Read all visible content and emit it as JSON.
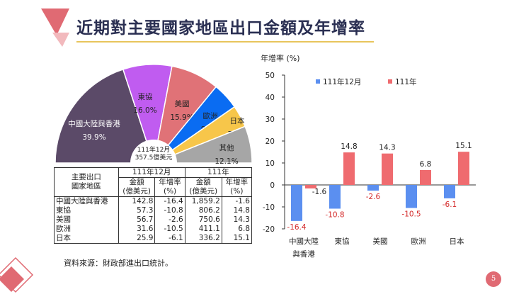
{
  "title": "近期對主要國家地區出口金額及年增率",
  "colors": {
    "accent_red": "#e06a73",
    "gold": "#e8c55c",
    "navy": "#2a2f52"
  },
  "pie": {
    "center_label": [
      "111年12月",
      "357.5億美元"
    ],
    "slices": [
      {
        "label": "中國大陸與香港",
        "pct": "39.9%",
        "value": 39.9,
        "color": "#5b4a68"
      },
      {
        "label": "東協",
        "pct": "16.0%",
        "value": 16.0,
        "color": "#c05cf0"
      },
      {
        "label": "美國",
        "pct": "15.9%",
        "value": 15.9,
        "color": "#e07277"
      },
      {
        "label": "歐洲",
        "pct": "8.8%",
        "value": 8.8,
        "color": "#0a6cf2"
      },
      {
        "label": "日本",
        "pct": "7.2%",
        "value": 7.2,
        "color": "#f7c64a"
      },
      {
        "label": "其他",
        "pct": "12.1%",
        "value": 12.1,
        "color": "#a6a6a6"
      }
    ]
  },
  "table": {
    "corner": [
      "主要出口",
      "國家地區"
    ],
    "groups": [
      "111年12月",
      "111年"
    ],
    "subheaders": [
      "金額",
      "年增率",
      "金額",
      "年增率"
    ],
    "units": [
      "(億美元)",
      "(%)",
      "(億美元)",
      "(%)"
    ],
    "rows": [
      [
        "中國大陸與香港",
        "142.8",
        "-16.4",
        "1,859.2",
        "-1.6"
      ],
      [
        "東協",
        "57.3",
        "-10.8",
        "806.2",
        "14.8"
      ],
      [
        "美國",
        "56.7",
        "-2.6",
        "750.6",
        "14.3"
      ],
      [
        "歐洲",
        "31.6",
        "-10.5",
        "411.1",
        "6.8"
      ],
      [
        "日本",
        "25.9",
        "-6.1",
        "336.2",
        "15.1"
      ]
    ]
  },
  "source": "資料來源：財政部進出口統計。",
  "page_number": "5",
  "chart_data": {
    "type": "bar",
    "ylabel": "年增率 (%)",
    "categories": [
      "中國大陸與香港",
      "東協",
      "美國",
      "歐洲",
      "日本"
    ],
    "category_lines": [
      [
        "中國大陸",
        "與香港"
      ],
      [
        "東協"
      ],
      [
        "美國"
      ],
      [
        "歐洲"
      ],
      [
        "日本"
      ]
    ],
    "series": [
      {
        "name": "111年12月",
        "values": [
          -16.4,
          -10.8,
          -2.6,
          -10.5,
          -6.1
        ],
        "color": "#5b8ff0",
        "label_color": "#d42a2a"
      },
      {
        "name": "111年",
        "values": [
          -1.6,
          14.8,
          14.3,
          6.8,
          15.1
        ],
        "color": "#ef6b6f",
        "label_color": "#222222"
      }
    ],
    "ylim": [
      -20,
      50
    ],
    "yticks": [
      -20,
      -10,
      0,
      10,
      20,
      30,
      40,
      50
    ],
    "grid": false,
    "legend": "top"
  }
}
